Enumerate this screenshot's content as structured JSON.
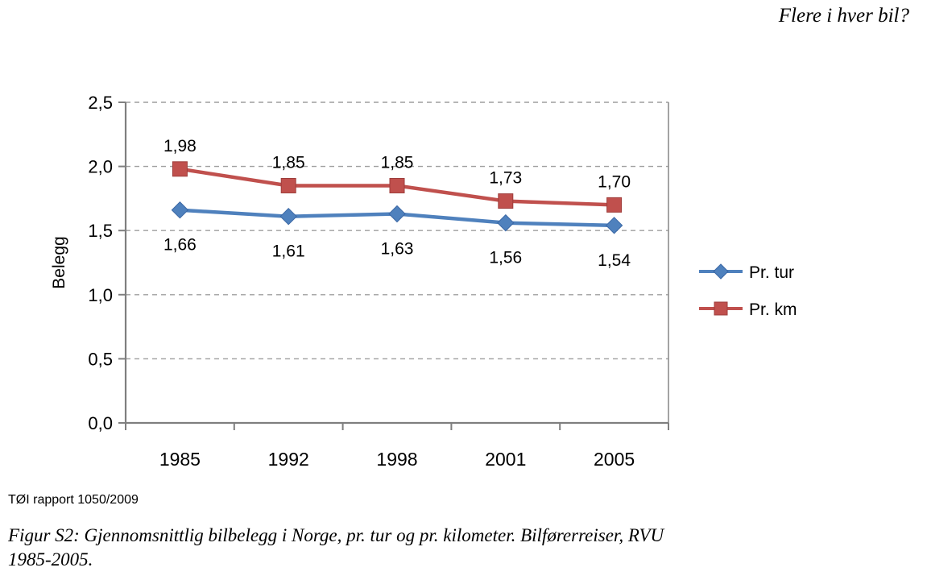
{
  "page": {
    "header_title": "Flere i hver bil?",
    "source_note": "TØI rapport 1050/2009",
    "caption_line1": "Figur S2: Gjennomsnittlig bilbelegg i Norge, pr. tur og pr. kilometer. Bilførerreiser, RVU",
    "caption_line2": "1985-2005."
  },
  "chart_data": {
    "type": "line",
    "title": "",
    "xlabel": "",
    "ylabel": "Belegg",
    "categories": [
      "1985",
      "1992",
      "1998",
      "2001",
      "2005"
    ],
    "series": [
      {
        "name": "Pr. tur",
        "marker": "diamond",
        "color": "#4F81BD",
        "edge_color": "#3A67A5",
        "values": [
          1.66,
          1.61,
          1.63,
          1.56,
          1.54
        ],
        "labels": [
          "1,66",
          "1,61",
          "1,63",
          "1,56",
          "1,54"
        ],
        "label_position": "below"
      },
      {
        "name": "Pr. km",
        "marker": "square",
        "color": "#C0504D",
        "edge_color": "#9E3D3B",
        "values": [
          1.98,
          1.85,
          1.85,
          1.73,
          1.7
        ],
        "labels": [
          "1,98",
          "1,85",
          "1,85",
          "1,73",
          "1,70"
        ],
        "label_position": "above"
      }
    ],
    "ylim": [
      0,
      2.5
    ],
    "y_ticks": [
      {
        "v": 0.0,
        "label": "0,0"
      },
      {
        "v": 0.5,
        "label": "0,5"
      },
      {
        "v": 1.0,
        "label": "1,0"
      },
      {
        "v": 1.5,
        "label": "1,5"
      },
      {
        "v": 2.0,
        "label": "2,0"
      },
      {
        "v": 2.5,
        "label": "2,5"
      }
    ],
    "grid": "horizontal-dashed",
    "legend_position": "right",
    "colors": {
      "axis": "#7F7F7F",
      "gridline": "#9E9E9E",
      "plot_right_border": "#8C8C8C"
    }
  }
}
